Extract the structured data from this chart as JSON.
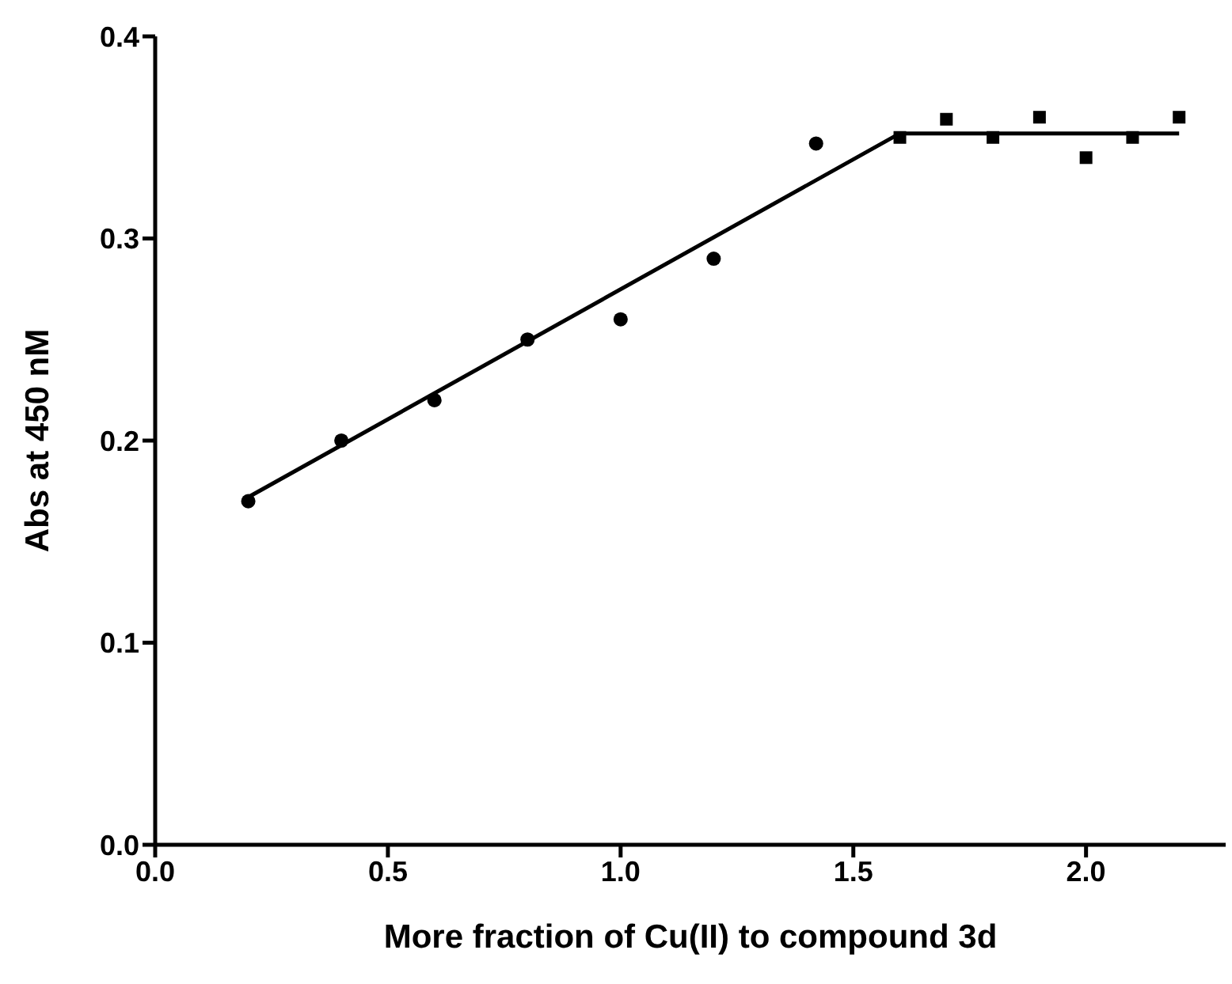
{
  "chart_data": {
    "type": "scatter",
    "xlabel": "More fraction of Cu(II) to compound 3d",
    "ylabel": "Abs at 450 nM",
    "xlim": [
      0,
      2.3
    ],
    "xticks": [
      {
        "value": 0,
        "label": "0.0"
      },
      0.5,
      {
        "value": 1,
        "label": "1.0"
      },
      1.5,
      {
        "value": 2,
        "label": "2.0"
      }
    ],
    "ylim": [
      0,
      0.4
    ],
    "yticks": [
      {
        "value": 0,
        "label": "0.0"
      },
      0.1,
      0.2,
      0.3,
      0.4
    ],
    "grid": false,
    "legend": false,
    "series": [
      {
        "marker": "circle",
        "color": "#000000",
        "x": [
          0.2,
          0.4,
          0.6,
          0.8,
          1.0,
          1.2,
          1.42
        ],
        "values": [
          0.17,
          0.2,
          0.22,
          0.25,
          0.26,
          0.29,
          0.347
        ]
      },
      {
        "marker": "square",
        "color": "#000000",
        "x": [
          1.6,
          1.7,
          1.8,
          1.9,
          2.0,
          2.1,
          2.2
        ],
        "values": [
          0.35,
          0.359,
          0.35,
          0.36,
          0.34,
          0.35,
          0.36
        ]
      },
      {
        "type": "line",
        "marker": "none",
        "line_style": "solid",
        "color": "#000000",
        "x": [
          0.2,
          1.6
        ],
        "values": [
          0.172,
          0.352
        ]
      },
      {
        "type": "line",
        "marker": "none",
        "line_style": "solid",
        "color": "#000000",
        "x": [
          1.6,
          2.2
        ],
        "values": [
          0.352,
          0.352
        ]
      }
    ]
  }
}
